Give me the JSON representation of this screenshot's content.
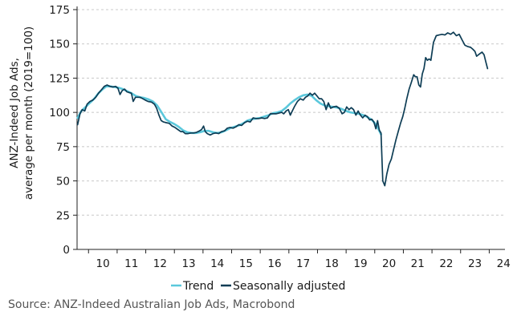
{
  "chart_data": {
    "type": "line",
    "ylabel_line1": "ANZ-Indeed Job Ads,",
    "ylabel_line2": "average per month (2019=100)",
    "ylim": [
      0,
      175
    ],
    "yticks": [
      0,
      25,
      50,
      75,
      100,
      125,
      150,
      175
    ],
    "xlim": [
      2009.6,
      2024.55
    ],
    "xtick_labels": [
      "10",
      "11",
      "12",
      "13",
      "14",
      "15",
      "16",
      "17",
      "18",
      "19",
      "20",
      "21",
      "22",
      "23",
      "24"
    ],
    "grid": true,
    "legend_position": "bottom",
    "colors": {
      "trend": "#5bc8dc",
      "sa": "#0e3d55",
      "grid": "#c8c8c8",
      "axis": "#222222"
    },
    "series": [
      {
        "name": "Trend",
        "points": [
          [
            2009.62,
            96
          ],
          [
            2009.75,
            101
          ],
          [
            2009.9,
            104
          ],
          [
            2010.05,
            107
          ],
          [
            2010.2,
            110
          ],
          [
            2010.35,
            114
          ],
          [
            2010.5,
            117
          ],
          [
            2010.62,
            119
          ],
          [
            2010.75,
            119
          ],
          [
            2010.9,
            118.5
          ],
          [
            2011.05,
            118
          ],
          [
            2011.2,
            117
          ],
          [
            2011.35,
            115.5
          ],
          [
            2011.5,
            114
          ],
          [
            2011.65,
            112
          ],
          [
            2011.8,
            111
          ],
          [
            2011.95,
            110.5
          ],
          [
            2012.1,
            109.5
          ],
          [
            2012.25,
            108
          ],
          [
            2012.4,
            105
          ],
          [
            2012.55,
            100
          ],
          [
            2012.7,
            95
          ],
          [
            2012.85,
            93
          ],
          [
            2013.0,
            91.5
          ],
          [
            2013.15,
            89.5
          ],
          [
            2013.3,
            87
          ],
          [
            2013.45,
            85.5
          ],
          [
            2013.6,
            85
          ],
          [
            2013.75,
            85
          ],
          [
            2013.9,
            85.5
          ],
          [
            2014.05,
            86.5
          ],
          [
            2014.2,
            86.5
          ],
          [
            2014.35,
            85.5
          ],
          [
            2014.5,
            85
          ],
          [
            2014.65,
            85.5
          ],
          [
            2014.8,
            87
          ],
          [
            2014.95,
            88.5
          ],
          [
            2015.1,
            89.5
          ],
          [
            2015.25,
            90.5
          ],
          [
            2015.4,
            92
          ],
          [
            2015.55,
            94
          ],
          [
            2015.7,
            95
          ],
          [
            2015.85,
            95.5
          ],
          [
            2016.0,
            96
          ],
          [
            2016.15,
            97
          ],
          [
            2016.3,
            98
          ],
          [
            2016.45,
            99.5
          ],
          [
            2016.6,
            100
          ],
          [
            2016.75,
            101
          ],
          [
            2016.9,
            103.5
          ],
          [
            2017.05,
            106.5
          ],
          [
            2017.2,
            109
          ],
          [
            2017.35,
            111
          ],
          [
            2017.5,
            112.5
          ],
          [
            2017.65,
            113
          ],
          [
            2017.8,
            112
          ],
          [
            2017.95,
            109
          ],
          [
            2018.1,
            106.5
          ],
          [
            2018.25,
            105
          ],
          [
            2018.4,
            104.5
          ],
          [
            2018.55,
            104
          ],
          [
            2018.7,
            103.5
          ],
          [
            2018.85,
            102.5
          ],
          [
            2019.0,
            101
          ],
          [
            2019.15,
            100
          ],
          [
            2019.3,
            99.5
          ],
          [
            2019.45,
            99
          ],
          [
            2019.6,
            98
          ],
          [
            2019.75,
            96.5
          ],
          [
            2019.9,
            94.5
          ],
          [
            2020.05,
            91
          ],
          [
            2020.15,
            87
          ],
          [
            2020.22,
            84
          ]
        ]
      },
      {
        "name": "Seasonally adjusted",
        "points": [
          [
            2009.62,
            91
          ],
          [
            2009.7,
            99
          ],
          [
            2009.78,
            102
          ],
          [
            2009.87,
            101
          ],
          [
            2009.95,
            106
          ],
          [
            2010.05,
            108
          ],
          [
            2010.15,
            109
          ],
          [
            2010.25,
            111
          ],
          [
            2010.35,
            114
          ],
          [
            2010.45,
            116.5
          ],
          [
            2010.55,
            119
          ],
          [
            2010.65,
            120
          ],
          [
            2010.75,
            119
          ],
          [
            2010.85,
            118.5
          ],
          [
            2010.95,
            119
          ],
          [
            2011.03,
            117.5
          ],
          [
            2011.1,
            113
          ],
          [
            2011.18,
            116
          ],
          [
            2011.26,
            117
          ],
          [
            2011.34,
            115
          ],
          [
            2011.42,
            114.5
          ],
          [
            2011.5,
            114
          ],
          [
            2011.56,
            108
          ],
          [
            2011.64,
            111
          ],
          [
            2011.72,
            111
          ],
          [
            2011.8,
            111
          ],
          [
            2011.9,
            110
          ],
          [
            2011.98,
            109
          ],
          [
            2012.08,
            108
          ],
          [
            2012.2,
            107.5
          ],
          [
            2012.3,
            106
          ],
          [
            2012.38,
            103
          ],
          [
            2012.46,
            98
          ],
          [
            2012.54,
            94
          ],
          [
            2012.62,
            93
          ],
          [
            2012.72,
            92.5
          ],
          [
            2012.82,
            92
          ],
          [
            2012.92,
            90
          ],
          [
            2013.02,
            89
          ],
          [
            2013.12,
            87.5
          ],
          [
            2013.22,
            86
          ],
          [
            2013.3,
            86
          ],
          [
            2013.38,
            84.5
          ],
          [
            2013.48,
            84.5
          ],
          [
            2013.58,
            85
          ],
          [
            2013.68,
            85
          ],
          [
            2013.78,
            85.5
          ],
          [
            2013.88,
            86.5
          ],
          [
            2013.95,
            87.5
          ],
          [
            2014.02,
            90
          ],
          [
            2014.08,
            86
          ],
          [
            2014.15,
            84.5
          ],
          [
            2014.25,
            83.5
          ],
          [
            2014.35,
            84.5
          ],
          [
            2014.45,
            85
          ],
          [
            2014.55,
            84.5
          ],
          [
            2014.65,
            86
          ],
          [
            2014.75,
            86.5
          ],
          [
            2014.85,
            88.5
          ],
          [
            2014.95,
            89
          ],
          [
            2015.05,
            88.5
          ],
          [
            2015.15,
            89.5
          ],
          [
            2015.25,
            91
          ],
          [
            2015.35,
            90.5
          ],
          [
            2015.45,
            92.5
          ],
          [
            2015.55,
            93.5
          ],
          [
            2015.65,
            93
          ],
          [
            2015.75,
            96
          ],
          [
            2015.85,
            95.5
          ],
          [
            2015.95,
            95.5
          ],
          [
            2016.05,
            96
          ],
          [
            2016.15,
            95.5
          ],
          [
            2016.25,
            96
          ],
          [
            2016.35,
            99
          ],
          [
            2016.45,
            99
          ],
          [
            2016.55,
            99
          ],
          [
            2016.65,
            99.5
          ],
          [
            2016.75,
            100
          ],
          [
            2016.82,
            99
          ],
          [
            2016.9,
            101
          ],
          [
            2016.98,
            102
          ],
          [
            2017.05,
            98
          ],
          [
            2017.12,
            101
          ],
          [
            2017.2,
            104.5
          ],
          [
            2017.3,
            108
          ],
          [
            2017.4,
            110
          ],
          [
            2017.5,
            109
          ],
          [
            2017.58,
            111
          ],
          [
            2017.66,
            112
          ],
          [
            2017.74,
            114
          ],
          [
            2017.82,
            112.5
          ],
          [
            2017.9,
            114
          ],
          [
            2017.98,
            112
          ],
          [
            2018.06,
            110
          ],
          [
            2018.14,
            110
          ],
          [
            2018.22,
            108
          ],
          [
            2018.3,
            102
          ],
          [
            2018.38,
            107
          ],
          [
            2018.46,
            103
          ],
          [
            2018.56,
            104
          ],
          [
            2018.66,
            104.5
          ],
          [
            2018.76,
            103
          ],
          [
            2018.86,
            99
          ],
          [
            2018.94,
            100
          ],
          [
            2019.02,
            104
          ],
          [
            2019.1,
            102
          ],
          [
            2019.18,
            103.5
          ],
          [
            2019.26,
            102
          ],
          [
            2019.34,
            98
          ],
          [
            2019.42,
            101
          ],
          [
            2019.5,
            98
          ],
          [
            2019.58,
            96
          ],
          [
            2019.66,
            98
          ],
          [
            2019.74,
            97
          ],
          [
            2019.82,
            94.5
          ],
          [
            2019.9,
            95
          ],
          [
            2019.97,
            93
          ],
          [
            2020.04,
            88
          ],
          [
            2020.1,
            94
          ],
          [
            2020.16,
            87
          ],
          [
            2020.22,
            85
          ],
          [
            2020.28,
            50
          ],
          [
            2020.35,
            46.5
          ],
          [
            2020.42,
            55
          ],
          [
            2020.5,
            62
          ],
          [
            2020.58,
            66
          ],
          [
            2020.66,
            73
          ],
          [
            2020.74,
            80
          ],
          [
            2020.82,
            86
          ],
          [
            2020.9,
            92
          ],
          [
            2020.98,
            97
          ],
          [
            2021.05,
            103
          ],
          [
            2021.12,
            110
          ],
          [
            2021.2,
            117
          ],
          [
            2021.28,
            122
          ],
          [
            2021.36,
            127.5
          ],
          [
            2021.42,
            126
          ],
          [
            2021.48,
            126
          ],
          [
            2021.54,
            120
          ],
          [
            2021.6,
            118.5
          ],
          [
            2021.66,
            128
          ],
          [
            2021.72,
            132
          ],
          [
            2021.78,
            140
          ],
          [
            2021.84,
            138
          ],
          [
            2021.9,
            139
          ],
          [
            2021.96,
            138
          ],
          [
            2022.05,
            151
          ],
          [
            2022.15,
            156
          ],
          [
            2022.25,
            156.5
          ],
          [
            2022.35,
            157
          ],
          [
            2022.45,
            156.5
          ],
          [
            2022.55,
            158
          ],
          [
            2022.65,
            157
          ],
          [
            2022.75,
            158.5
          ],
          [
            2022.85,
            156
          ],
          [
            2022.95,
            157
          ],
          [
            2023.05,
            153
          ],
          [
            2023.15,
            149
          ],
          [
            2023.25,
            148
          ],
          [
            2023.35,
            147.5
          ],
          [
            2023.43,
            146
          ],
          [
            2023.5,
            144.5
          ],
          [
            2023.56,
            141
          ],
          [
            2023.62,
            142
          ],
          [
            2023.68,
            143
          ],
          [
            2023.75,
            144
          ],
          [
            2023.82,
            142
          ],
          [
            2023.88,
            137
          ],
          [
            2023.94,
            132
          ]
        ]
      }
    ]
  },
  "source_text": "Source: ANZ-Indeed Australian Job Ads, Macrobond"
}
